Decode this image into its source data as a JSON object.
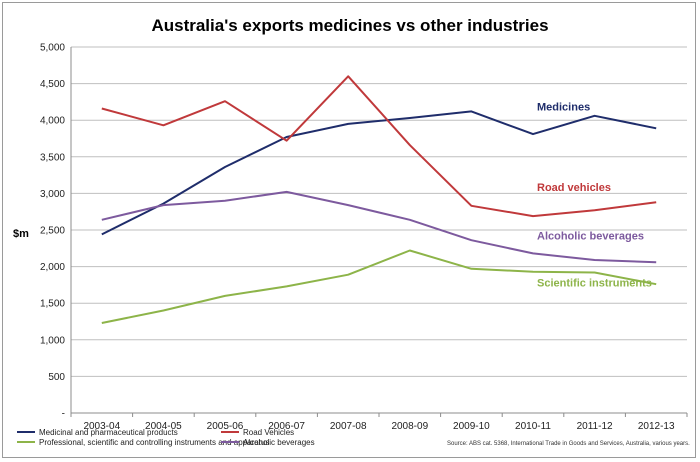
{
  "chart_data": {
    "type": "line",
    "title": "Australia's exports medicines vs other industries",
    "ylabel": "$m",
    "xlabel": "",
    "ylim": [
      0,
      5000
    ],
    "yticks": [
      0,
      500,
      1000,
      1500,
      2000,
      2500,
      3000,
      3500,
      4000,
      4500,
      5000
    ],
    "ytick_labels": [
      "-",
      "500",
      "1,000",
      "1,500",
      "2,000",
      "2,500",
      "3,000",
      "3,500",
      "4,000",
      "4,500",
      "5,000"
    ],
    "grid": "horizontal",
    "legend_position": "bottom",
    "categories": [
      "2003-04",
      "2004-05",
      "2005-06",
      "2006-07",
      "2007-08",
      "2008-09",
      "2009-10",
      "2010-11",
      "2011-12",
      "2012-13"
    ],
    "series": [
      {
        "name": "Medicinal and pharmaceutical products",
        "color": "#1f2d6b",
        "values": [
          2440,
          2860,
          3360,
          3770,
          3950,
          4030,
          4120,
          3810,
          4060,
          3890
        ]
      },
      {
        "name": "Road Vehicles",
        "color": "#c0393b",
        "values": [
          4160,
          3930,
          4260,
          3720,
          4600,
          3660,
          2830,
          2690,
          2770,
          2880
        ]
      },
      {
        "name": "Professional, scientific and controlling instruments and apparatus",
        "color": "#8db449",
        "values": [
          1230,
          1400,
          1600,
          1730,
          1890,
          2220,
          1970,
          1930,
          1920,
          1760
        ]
      },
      {
        "name": "Alcoholic beverages",
        "color": "#7d5a9e",
        "values": [
          2640,
          2840,
          2900,
          3020,
          2840,
          2640,
          2360,
          2180,
          2090,
          2060
        ]
      }
    ],
    "annotations": [
      {
        "text": "Medicines",
        "color": "#1f2d6b",
        "x": "2010-11",
        "y": 4130
      },
      {
        "text": "Road vehicles",
        "color": "#c0393b",
        "x": "2010-11",
        "y": 3030
      },
      {
        "text": "Alcoholic beverages",
        "color": "#7d5a9e",
        "x": "2010-11",
        "y": 2370
      },
      {
        "text": "Scientific instruments",
        "color": "#8db449",
        "x": "2010-11",
        "y": 1730
      }
    ],
    "source": "Source: ABS cat. 5368, International Trade in Goods and Services, Australia, various years."
  }
}
